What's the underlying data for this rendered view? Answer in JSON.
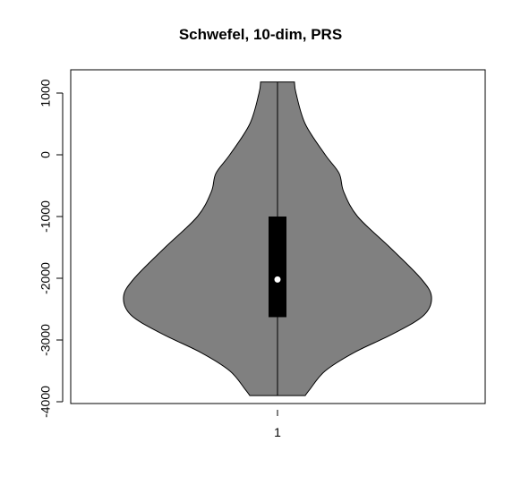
{
  "chart_data": {
    "type": "violin",
    "title": "Schwefel, 10-dim, PRS",
    "xlabel": "",
    "ylabel": "",
    "categories": [
      "1"
    ],
    "ylim": [
      -4000,
      1300
    ],
    "yticks": [
      1000,
      0,
      -1000,
      -2000,
      -3000,
      -4000
    ],
    "ytick_labels": [
      "1000",
      "0",
      "-1000",
      "-2000",
      "-3000",
      "-4000"
    ],
    "fill_color": "#808080",
    "box_color": "#000000",
    "median_color": "#ffffff",
    "series": [
      {
        "category": "1",
        "min": -3900,
        "q1": -2630,
        "median": -2020,
        "q3": -1000,
        "max": 1180,
        "density_profile": [
          {
            "y": 1180,
            "w": 0.11
          },
          {
            "y": 1000,
            "w": 0.12
          },
          {
            "y": 500,
            "w": 0.18
          },
          {
            "y": 0,
            "w": 0.31
          },
          {
            "y": -300,
            "w": 0.4
          },
          {
            "y": -600,
            "w": 0.43
          },
          {
            "y": -1000,
            "w": 0.52
          },
          {
            "y": -1500,
            "w": 0.73
          },
          {
            "y": -2000,
            "w": 0.93
          },
          {
            "y": -2300,
            "w": 1.0
          },
          {
            "y": -2600,
            "w": 0.95
          },
          {
            "y": -2900,
            "w": 0.75
          },
          {
            "y": -3200,
            "w": 0.5
          },
          {
            "y": -3500,
            "w": 0.31
          },
          {
            "y": -3800,
            "w": 0.21
          },
          {
            "y": -3900,
            "w": 0.18
          }
        ]
      }
    ]
  }
}
